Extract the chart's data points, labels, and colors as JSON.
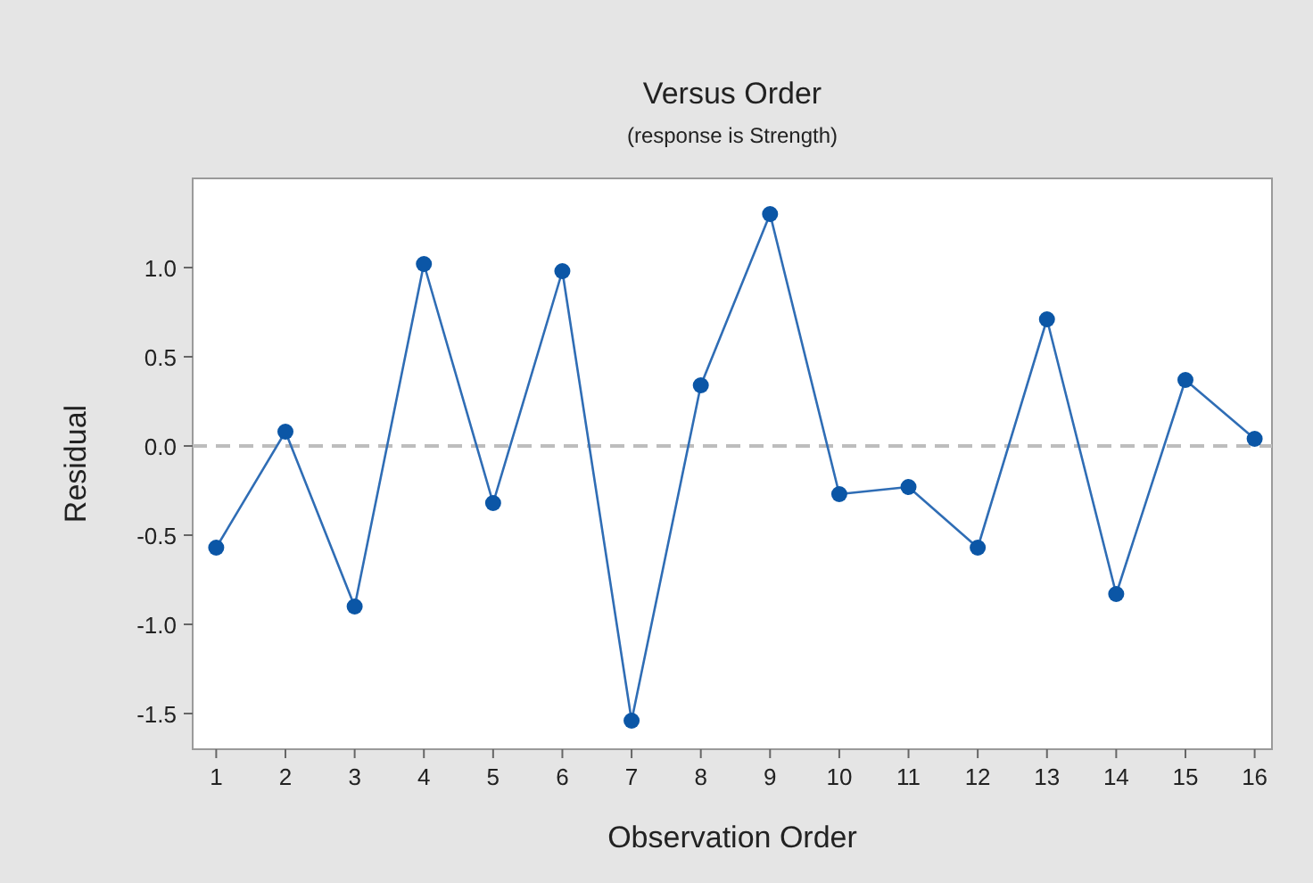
{
  "chart_data": {
    "type": "line",
    "title": "Versus Order",
    "subtitle": "(response is Strength)",
    "xlabel": "Observation Order",
    "ylabel": "Residual",
    "x": [
      1,
      2,
      3,
      4,
      5,
      6,
      7,
      8,
      9,
      10,
      11,
      12,
      13,
      14,
      15,
      16
    ],
    "series": [
      {
        "color": "#2f6db5",
        "values": [
          -0.57,
          0.08,
          -0.9,
          1.02,
          -0.32,
          0.98,
          -1.54,
          0.34,
          1.3,
          -0.27,
          -0.23,
          -0.57,
          0.71,
          -0.83,
          0.37,
          0.04
        ]
      }
    ],
    "xlim": [
      0.66,
      16.25
    ],
    "xticks": [
      1,
      2,
      3,
      4,
      5,
      6,
      7,
      8,
      9,
      10,
      11,
      12,
      13,
      14,
      15,
      16
    ],
    "ylim": [
      -1.7,
      1.5
    ],
    "yticks": [
      {
        "value": -1.5,
        "label": "-1.5"
      },
      {
        "value": -1,
        "label": "-1.0"
      },
      {
        "value": -0.5,
        "label": "-0.5"
      },
      {
        "value": 0,
        "label": "0.0"
      },
      {
        "value": 0.5,
        "label": "0.5"
      },
      {
        "value": 1,
        "label": "1.0"
      }
    ],
    "ref_lines": [
      {
        "axis": "y",
        "value": 0,
        "color": "#bdbdbd",
        "line_style": "dashed"
      }
    ],
    "marker": "circle",
    "line_style": "solid",
    "grid": false
  }
}
